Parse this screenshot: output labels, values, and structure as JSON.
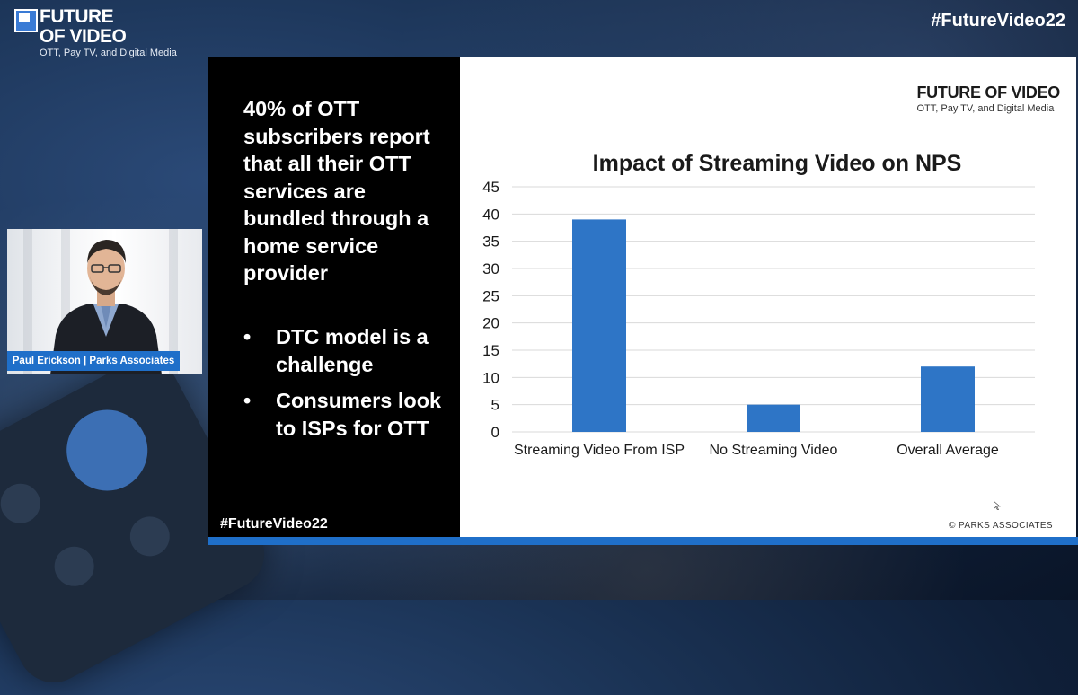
{
  "event": {
    "logo_line1": "FUTURE",
    "logo_line2": "OF VIDEO",
    "logo_sub": "OTT, Pay TV, and Digital Media",
    "hashtag": "#FutureVideo22"
  },
  "speaker": {
    "name": "Paul Erickson | Parks Associates"
  },
  "slide": {
    "headline": "40% of OTT subscribers report that all their OTT services are bundled through a home service provider",
    "bullets": [
      "DTC model is a challenge",
      "Consumers look to ISPs for OTT"
    ],
    "hashtag": "#FutureVideo22",
    "brand_title": "FUTURE OF VIDEO",
    "brand_sub": "OTT, Pay TV, and Digital Media",
    "copyright": "© PARKS ASSOCIATES"
  },
  "colors": {
    "accent": "#1f6fc9",
    "bar": "#2e75c6",
    "grid": "#d9d9d9"
  },
  "chart_data": {
    "type": "bar",
    "title": "Impact of Streaming Video on NPS",
    "categories": [
      "Streaming Video From ISP",
      "No Streaming Video",
      "Overall Average"
    ],
    "values": [
      39,
      5,
      12
    ],
    "ylim": [
      0,
      45
    ],
    "yticks": [
      0,
      5,
      10,
      15,
      20,
      25,
      30,
      35,
      40,
      45
    ],
    "grid": true,
    "legend": "none",
    "xlabel": "",
    "ylabel": ""
  }
}
